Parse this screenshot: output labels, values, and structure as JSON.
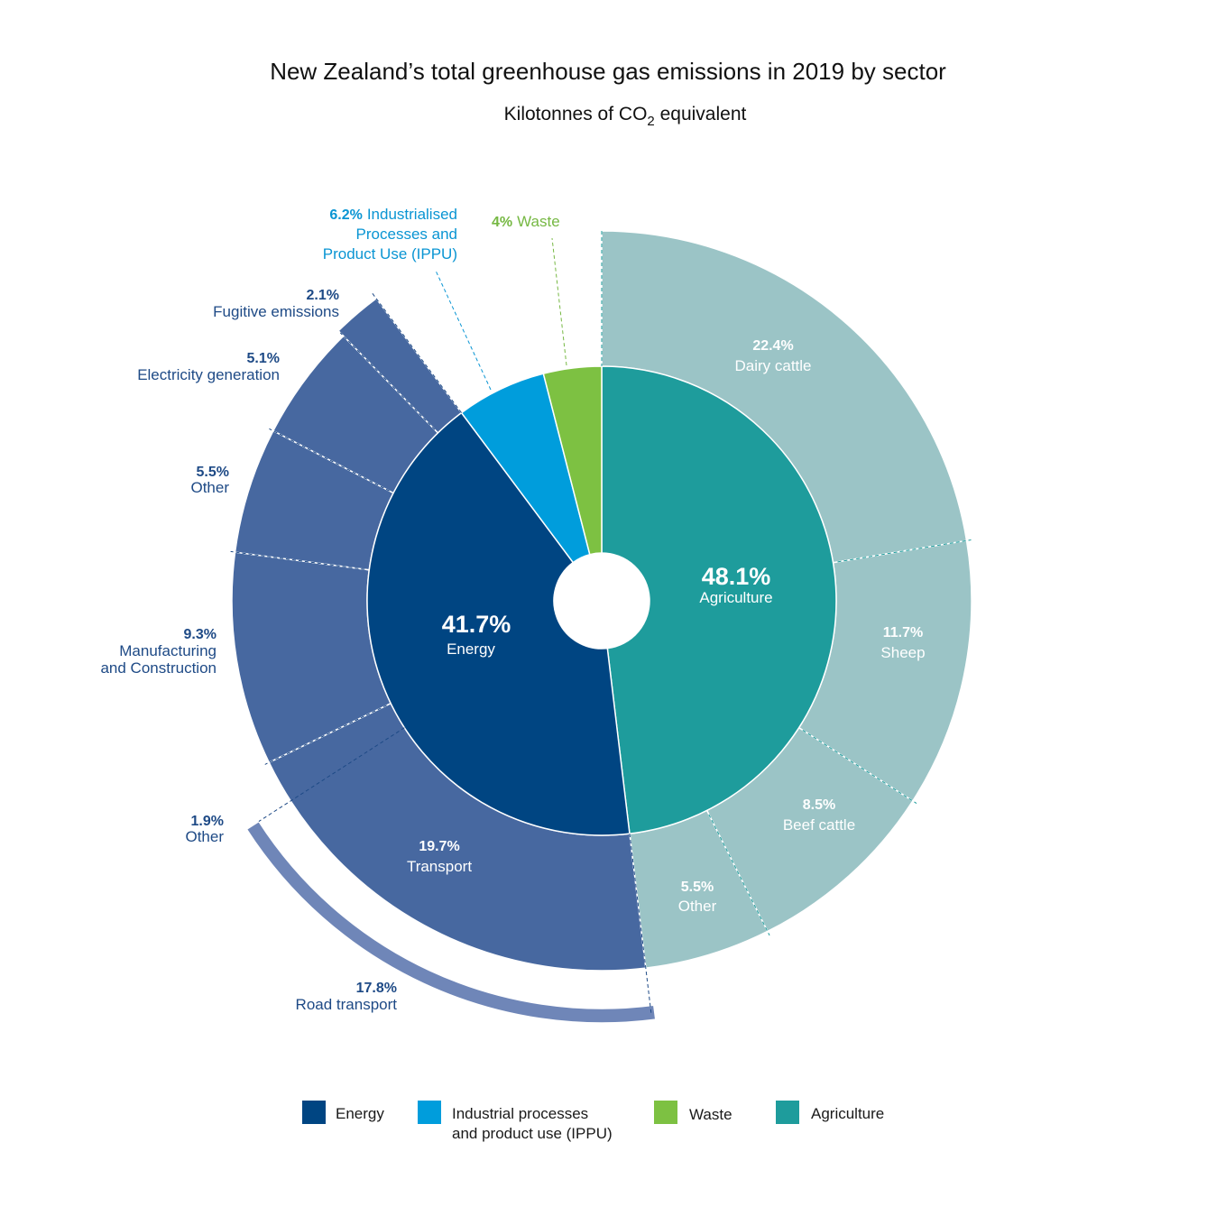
{
  "chart_data": {
    "type": "pie",
    "title": "New Zealand’s total greenhouse gas emissions in 2019 by sector",
    "subtitle_prefix": "Kilotonnes of CO",
    "subtitle_sub": "2",
    "subtitle_suffix": " equivalent",
    "colors": {
      "energy": "#004582",
      "energy_outer": "#4768a0",
      "energy_road": "#6f86b8",
      "ippu": "#009ddc",
      "waste": "#7dc142",
      "agriculture": "#1e9c9c",
      "agriculture_outer": "#9bc4c6",
      "energy_text": "#1e4a86",
      "ippu_text": "#0a95d3",
      "waste_text": "#76b843"
    },
    "sectors": [
      {
        "key": "agriculture",
        "name": "Agriculture",
        "value": 48.1,
        "label": "48.1%"
      },
      {
        "key": "energy",
        "name": "Energy",
        "value": 41.7,
        "label": "41.7%"
      },
      {
        "key": "ippu",
        "name": "Industrialised Processes and Product Use (IPPU)",
        "value": 6.2,
        "label": "6.2%"
      },
      {
        "key": "waste",
        "name": "Waste",
        "value": 4.0,
        "label": "4%"
      }
    ],
    "subsectors": [
      {
        "parent": "agriculture",
        "name": "Dairy cattle",
        "value": 22.4,
        "label": "22.4%"
      },
      {
        "parent": "agriculture",
        "name": "Sheep",
        "value": 11.7,
        "label": "11.7%"
      },
      {
        "parent": "agriculture",
        "name": "Beef cattle",
        "value": 8.5,
        "label": "8.5%"
      },
      {
        "parent": "agriculture",
        "name": "Other",
        "value": 5.5,
        "label": "5.5%"
      },
      {
        "parent": "energy",
        "name": "Transport",
        "value": 19.7,
        "label": "19.7%"
      },
      {
        "parent": "energy",
        "name": "Manufacturing and Construction",
        "value": 9.3,
        "label": "9.3%"
      },
      {
        "parent": "energy",
        "name": "Other",
        "value": 5.5,
        "label": "5.5%"
      },
      {
        "parent": "energy",
        "name": "Electricity generation",
        "value": 5.1,
        "label": "5.1%"
      },
      {
        "parent": "energy",
        "name": "Fugitive emissions",
        "value": 2.1,
        "label": "2.1%"
      }
    ],
    "transport_breakdown": [
      {
        "name": "Road transport",
        "value": 17.8,
        "label": "17.8%"
      },
      {
        "name": "Other",
        "value": 1.9,
        "label": "1.9%"
      }
    ],
    "labels": {
      "agriculture_center_pct": "48.1%",
      "agriculture_center_name": "Agriculture",
      "energy_center_pct": "41.7%",
      "energy_center_name": "Energy",
      "ippu_pct": "6.2%",
      "ippu_line1": "Industrialised",
      "ippu_line2": "Processes and",
      "ippu_line3": "Product Use (IPPU)",
      "waste_pct": "4%",
      "waste_name": "Waste",
      "dairy_pct": "22.4%",
      "dairy_name": "Dairy cattle",
      "sheep_pct": "11.7%",
      "sheep_name": "Sheep",
      "beef_pct": "8.5%",
      "beef_name": "Beef cattle",
      "agri_other_pct": "5.5%",
      "agri_other_name": "Other",
      "transport_pct": "19.7%",
      "transport_name": "Transport",
      "fugitive_pct": "2.1%",
      "fugitive_name": "Fugitive emissions",
      "electricity_pct": "5.1%",
      "electricity_name": "Electricity generation",
      "energy_other_pct": "5.5%",
      "energy_other_name": "Other",
      "manufacturing_pct": "9.3%",
      "manufacturing_line1": "Manufacturing",
      "manufacturing_line2": "and Construction",
      "transport_other_pct": "1.9%",
      "transport_other_name": "Other",
      "road_pct": "17.8%",
      "road_name": "Road transport"
    },
    "legend": [
      {
        "key": "energy",
        "line1": "Energy",
        "line2": ""
      },
      {
        "key": "ippu",
        "line1": "Industrial processes",
        "line2": "and product use (IPPU)"
      },
      {
        "key": "waste",
        "line1": "Waste",
        "line2": ""
      },
      {
        "key": "agriculture",
        "line1": "Agriculture",
        "line2": ""
      }
    ]
  }
}
